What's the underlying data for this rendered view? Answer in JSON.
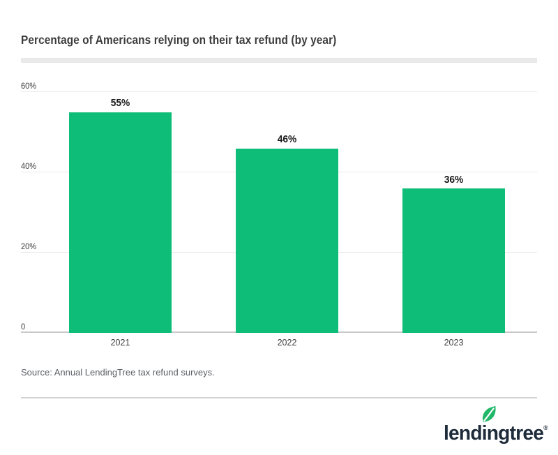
{
  "page": {
    "source": "Source: Annual LendingTree tax refund surveys.",
    "logo": {
      "text": "lendingtree",
      "registered": "®",
      "navy": "#1d2b3a",
      "leaf_green": "#21b76a"
    }
  },
  "chart_data": {
    "type": "bar",
    "title": "Percentage of Americans relying on their tax refund (by year)",
    "categories": [
      "2021",
      "2022",
      "2023"
    ],
    "values": [
      55,
      46,
      36
    ],
    "value_labels": [
      "55%",
      "46%",
      "36%"
    ],
    "yticks": [
      {
        "value": 0,
        "label": "0"
      },
      {
        "value": 20,
        "label": "20%"
      },
      {
        "value": 40,
        "label": "40%"
      },
      {
        "value": 60,
        "label": "60%"
      }
    ],
    "ylim": [
      0,
      60
    ],
    "xlabel": "",
    "ylabel": "",
    "bar_color": "#0ebd78",
    "grid": true,
    "legend": false
  }
}
